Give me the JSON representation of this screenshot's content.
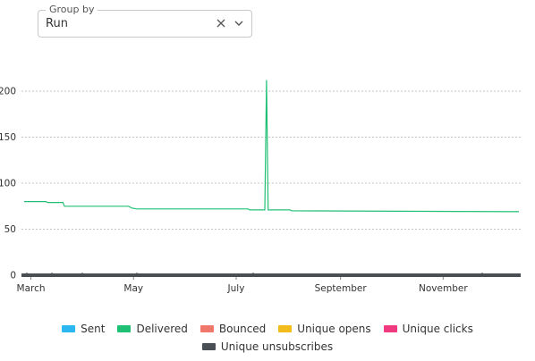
{
  "group_by": {
    "legend": "Group by",
    "value": "Run",
    "clear_icon": "close-icon",
    "chevron_icon": "chevron-down-icon"
  },
  "chart_data": {
    "type": "line",
    "x_tick_labels": [
      "March",
      "May",
      "July",
      "September",
      "November"
    ],
    "y_tick_labels": [
      "0",
      "50",
      "100",
      "150",
      "200"
    ],
    "ylim": [
      0,
      220
    ],
    "grid": true,
    "grid_style": "dashed horizontal",
    "legend_placement": "bottom-center",
    "series": [
      {
        "name": "Delivered",
        "color": "#20c074",
        "points": [
          [
            "Feb 25",
            80
          ],
          [
            "Mar 10",
            80
          ],
          [
            "Mar 11",
            79
          ],
          [
            "Mar 20",
            79
          ],
          [
            "Mar 21",
            75
          ],
          [
            "Apr 28",
            75
          ],
          [
            "Apr 30",
            73
          ],
          [
            "May 3",
            72
          ],
          [
            "Jul 8",
            72
          ],
          [
            "Jul 9",
            71
          ],
          [
            "Jul 18",
            71
          ],
          [
            "Jul 19",
            212
          ],
          [
            "Jul 20",
            71
          ],
          [
            "Aug 2",
            71
          ],
          [
            "Aug 3",
            70
          ],
          [
            "Dec 16",
            69
          ]
        ]
      },
      {
        "name": "Unique unsubscribes",
        "color": "#4a4f55",
        "points": [
          [
            "Feb 25",
            0
          ],
          [
            "Dec 16",
            0
          ]
        ]
      }
    ],
    "legend": [
      {
        "name": "Sent",
        "color": "#2cb6f2"
      },
      {
        "name": "Delivered",
        "color": "#20c074"
      },
      {
        "name": "Bounced",
        "color": "#f0786a"
      },
      {
        "name": "Unique opens",
        "color": "#f2bc1c"
      },
      {
        "name": "Unique clicks",
        "color": "#f03a80"
      },
      {
        "name": "Unique unsubscribes",
        "color": "#4a4f55"
      }
    ]
  }
}
